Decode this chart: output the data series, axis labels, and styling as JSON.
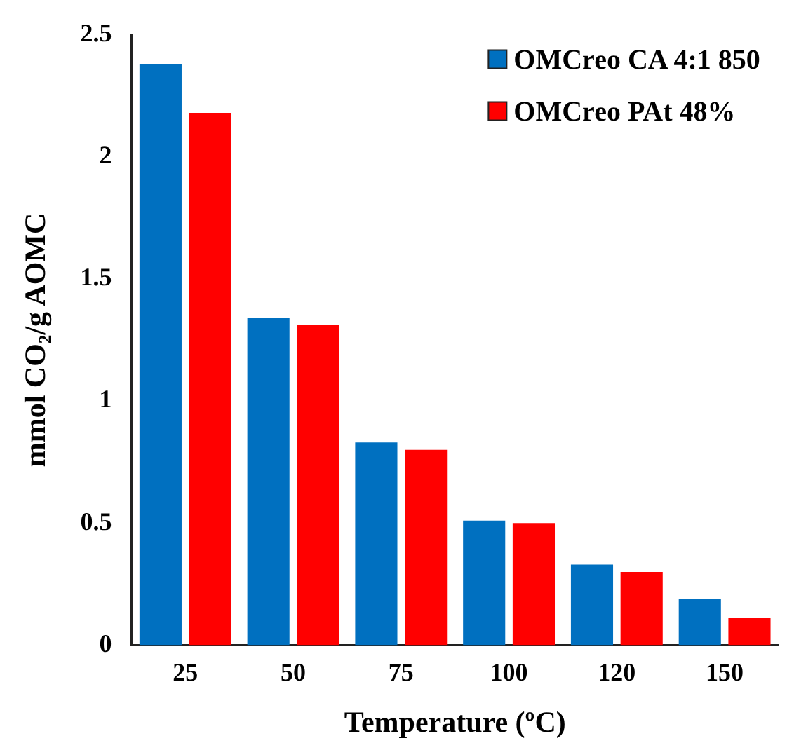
{
  "chart_data": {
    "type": "bar",
    "xlabel": "Temperature (ºC)",
    "ylabel": "mmol CO₂/g AOMC",
    "categories": [
      "25",
      "50",
      "75",
      "100",
      "120",
      "150"
    ],
    "series": [
      {
        "name": "OMCreo CA 4:1 850",
        "color": "#0070c0",
        "values": [
          2.38,
          1.34,
          0.83,
          0.51,
          0.33,
          0.19
        ]
      },
      {
        "name": "OMCreo PAt 48%",
        "color": "#ff0000",
        "values": [
          2.18,
          1.31,
          0.8,
          0.5,
          0.3,
          0.11
        ]
      }
    ],
    "ylim": [
      0,
      2.5
    ],
    "yticks": [
      0,
      0.5,
      1,
      1.5,
      2,
      2.5
    ],
    "grid": false,
    "legend": "top right"
  }
}
